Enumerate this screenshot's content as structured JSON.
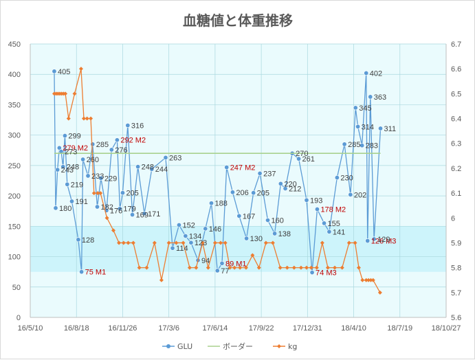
{
  "chart_data": {
    "type": "line",
    "title": "血糖値と体重推移",
    "colors": {
      "glu": "#5b9bd5",
      "border": "#a9d18e",
      "kg": "#ed7d31",
      "band": "#cdf4fb",
      "plot_bg": "#eafbfd",
      "grid": "#a9d8de",
      "note_text": "#c00000"
    },
    "x_axis": {
      "type": "date",
      "range": [
        "2016-05-10",
        "2018-10-27"
      ],
      "tick_dates": [
        "2016-05-10",
        "2016-08-18",
        "2016-11-26",
        "2017-03-06",
        "2017-06-14",
        "2017-09-22",
        "2017-12-31",
        "2018-04-10",
        "2018-07-19",
        "2018-10-27"
      ],
      "tick_labels": [
        "16/5/10",
        "16/8/18",
        "16/11/26",
        "17/3/6",
        "17/6/14",
        "17/9/22",
        "17/12/31",
        "18/4/10",
        "18/7/19",
        "18/10/27"
      ]
    },
    "y_left": {
      "range": [
        0,
        450
      ],
      "step": 50,
      "tick_labels": [
        "0",
        "50",
        "100",
        "150",
        "200",
        "250",
        "300",
        "350",
        "400",
        "450"
      ]
    },
    "y_right": {
      "range": [
        5.6,
        6.7
      ],
      "step": 0.1,
      "tick_labels": [
        "5.6",
        "5.7",
        "5.8",
        "5.9",
        "6",
        "6.1",
        "6.2",
        "6.3",
        "6.4",
        "6.5",
        "6.6",
        "6.7"
      ]
    },
    "target_band": {
      "axis": "left",
      "from": 75,
      "to": 150
    },
    "series": [
      {
        "name": "GLU",
        "axis": "left",
        "marker": "circle",
        "points": [
          {
            "x": "2016-07-01",
            "y": 405,
            "label": "405"
          },
          {
            "x": "2016-07-04",
            "y": 180,
            "label": "180"
          },
          {
            "x": "2016-07-08",
            "y": 243,
            "label": "243"
          },
          {
            "x": "2016-07-12",
            "y": 279,
            "label": "279 M2",
            "note": true
          },
          {
            "x": "2016-07-16",
            "y": 273,
            "label": "273"
          },
          {
            "x": "2016-07-20",
            "y": 248,
            "label": "248"
          },
          {
            "x": "2016-07-24",
            "y": 299,
            "label": "299"
          },
          {
            "x": "2016-07-29",
            "y": 219,
            "label": "219"
          },
          {
            "x": "2016-08-08",
            "y": 191,
            "label": "191"
          },
          {
            "x": "2016-08-22",
            "y": 128,
            "label": "128"
          },
          {
            "x": "2016-08-29",
            "y": 75,
            "label": "75 M1",
            "note": true
          },
          {
            "x": "2016-09-01",
            "y": 260,
            "label": "260"
          },
          {
            "x": "2016-09-12",
            "y": 233,
            "label": "233"
          },
          {
            "x": "2016-09-22",
            "y": 285,
            "label": "285"
          },
          {
            "x": "2016-10-02",
            "y": 182,
            "label": "182"
          },
          {
            "x": "2016-10-10",
            "y": 229,
            "label": "229"
          },
          {
            "x": "2016-10-22",
            "y": 176,
            "label": "176"
          },
          {
            "x": "2016-11-02",
            "y": 276,
            "label": "276"
          },
          {
            "x": "2016-11-14",
            "y": 292,
            "label": "292 M2",
            "note": true
          },
          {
            "x": "2016-11-20",
            "y": 179,
            "label": "179"
          },
          {
            "x": "2016-11-26",
            "y": 205,
            "label": "205"
          },
          {
            "x": "2016-12-07",
            "y": 316,
            "label": "316"
          },
          {
            "x": "2016-12-17",
            "y": 169,
            "label": "169"
          },
          {
            "x": "2016-12-29",
            "y": 248,
            "label": "248"
          },
          {
            "x": "2017-01-12",
            "y": 171,
            "label": "171"
          },
          {
            "x": "2017-01-28",
            "y": 244,
            "label": "244"
          },
          {
            "x": "2017-02-27",
            "y": 263,
            "label": "263"
          },
          {
            "x": "2017-03-14",
            "y": 114,
            "label": "114"
          },
          {
            "x": "2017-03-28",
            "y": 152,
            "label": "152"
          },
          {
            "x": "2017-04-11",
            "y": 134,
            "label": "134"
          },
          {
            "x": "2017-04-23",
            "y": 123,
            "label": "123"
          },
          {
            "x": "2017-05-08",
            "y": 94,
            "label": "94"
          },
          {
            "x": "2017-05-24",
            "y": 146,
            "label": "146"
          },
          {
            "x": "2017-06-06",
            "y": 188,
            "label": "188"
          },
          {
            "x": "2017-06-19",
            "y": 77,
            "label": "77"
          },
          {
            "x": "2017-06-29",
            "y": 89,
            "label": "89 M1",
            "note": true
          },
          {
            "x": "2017-07-09",
            "y": 247,
            "label": "247 M2",
            "note": true
          },
          {
            "x": "2017-07-22",
            "y": 206,
            "label": "206"
          },
          {
            "x": "2017-08-05",
            "y": 167,
            "label": "167"
          },
          {
            "x": "2017-08-21",
            "y": 130,
            "label": "130"
          },
          {
            "x": "2017-09-05",
            "y": 205,
            "label": "205"
          },
          {
            "x": "2017-09-19",
            "y": 237,
            "label": "237"
          },
          {
            "x": "2017-10-06",
            "y": 160,
            "label": "160"
          },
          {
            "x": "2017-10-21",
            "y": 138,
            "label": "138"
          },
          {
            "x": "2017-11-03",
            "y": 220,
            "label": "220"
          },
          {
            "x": "2017-11-13",
            "y": 212,
            "label": "212"
          },
          {
            "x": "2017-11-28",
            "y": 270,
            "label": "270"
          },
          {
            "x": "2017-12-12",
            "y": 261,
            "label": "261"
          },
          {
            "x": "2017-12-29",
            "y": 193,
            "label": "193"
          },
          {
            "x": "2018-01-10",
            "y": 74,
            "label": "74 M3",
            "note": true
          },
          {
            "x": "2018-01-21",
            "y": 178,
            "label": "178 M2",
            "note": true
          },
          {
            "x": "2018-02-05",
            "y": 155,
            "label": "155"
          },
          {
            "x": "2018-02-16",
            "y": 141,
            "label": "141"
          },
          {
            "x": "2018-03-05",
            "y": 230,
            "label": "230"
          },
          {
            "x": "2018-03-21",
            "y": 285,
            "label": "285"
          },
          {
            "x": "2018-04-03",
            "y": 202,
            "label": "202"
          },
          {
            "x": "2018-04-14",
            "y": 345,
            "label": "345"
          },
          {
            "x": "2018-04-19",
            "y": 314,
            "label": "314"
          },
          {
            "x": "2018-04-28",
            "y": 283,
            "label": "283"
          },
          {
            "x": "2018-05-07",
            "y": 402,
            "label": "402"
          },
          {
            "x": "2018-05-10",
            "y": 126,
            "label": "126 M3",
            "note": true
          },
          {
            "x": "2018-05-16",
            "y": 363,
            "label": "363"
          },
          {
            "x": "2018-05-24",
            "y": 129,
            "label": "129"
          },
          {
            "x": "2018-06-07",
            "y": 311,
            "label": "311"
          }
        ]
      },
      {
        "name": "ボーダー",
        "axis": "left",
        "marker": "none",
        "points": [
          {
            "x": "2016-07-01",
            "y": 270
          },
          {
            "x": "2018-06-07",
            "y": 270
          }
        ]
      },
      {
        "name": "kg",
        "axis": "right",
        "marker": "diamond",
        "points": [
          {
            "x": "2016-07-01",
            "y": 6.5
          },
          {
            "x": "2016-07-05",
            "y": 6.5
          },
          {
            "x": "2016-07-09",
            "y": 6.5
          },
          {
            "x": "2016-07-13",
            "y": 6.5
          },
          {
            "x": "2016-07-17",
            "y": 6.5
          },
          {
            "x": "2016-07-21",
            "y": 6.5
          },
          {
            "x": "2016-07-25",
            "y": 6.5
          },
          {
            "x": "2016-08-01",
            "y": 6.4
          },
          {
            "x": "2016-08-14",
            "y": 6.5
          },
          {
            "x": "2016-08-28",
            "y": 6.6
          },
          {
            "x": "2016-09-03",
            "y": 6.4
          },
          {
            "x": "2016-09-10",
            "y": 6.4
          },
          {
            "x": "2016-09-18",
            "y": 6.4
          },
          {
            "x": "2016-09-25",
            "y": 6.1
          },
          {
            "x": "2016-10-03",
            "y": 6.1
          },
          {
            "x": "2016-10-09",
            "y": 6.1
          },
          {
            "x": "2016-10-23",
            "y": 6.0
          },
          {
            "x": "2016-11-06",
            "y": 5.95
          },
          {
            "x": "2016-11-18",
            "y": 5.9
          },
          {
            "x": "2016-11-28",
            "y": 5.9
          },
          {
            "x": "2016-12-08",
            "y": 5.9
          },
          {
            "x": "2016-12-19",
            "y": 5.9
          },
          {
            "x": "2017-01-01",
            "y": 5.8
          },
          {
            "x": "2017-01-17",
            "y": 5.8
          },
          {
            "x": "2017-02-03",
            "y": 5.9
          },
          {
            "x": "2017-02-18",
            "y": 5.75
          },
          {
            "x": "2017-03-06",
            "y": 5.9
          },
          {
            "x": "2017-03-22",
            "y": 5.9
          },
          {
            "x": "2017-04-06",
            "y": 5.9
          },
          {
            "x": "2017-04-20",
            "y": 5.8
          },
          {
            "x": "2017-05-04",
            "y": 5.8
          },
          {
            "x": "2017-05-18",
            "y": 5.9
          },
          {
            "x": "2017-05-30",
            "y": 5.8
          },
          {
            "x": "2017-06-14",
            "y": 5.9
          },
          {
            "x": "2017-06-26",
            "y": 5.9
          },
          {
            "x": "2017-07-06",
            "y": 5.9
          },
          {
            "x": "2017-07-16",
            "y": 5.8
          },
          {
            "x": "2017-07-26",
            "y": 5.8
          },
          {
            "x": "2017-08-07",
            "y": 5.8
          },
          {
            "x": "2017-08-20",
            "y": 5.8
          },
          {
            "x": "2017-09-03",
            "y": 5.85
          },
          {
            "x": "2017-09-17",
            "y": 5.8
          },
          {
            "x": "2017-10-02",
            "y": 5.9
          },
          {
            "x": "2017-10-17",
            "y": 5.9
          },
          {
            "x": "2017-11-02",
            "y": 5.8
          },
          {
            "x": "2017-11-17",
            "y": 5.8
          },
          {
            "x": "2017-12-02",
            "y": 5.8
          },
          {
            "x": "2017-12-17",
            "y": 5.8
          },
          {
            "x": "2017-12-29",
            "y": 5.8
          },
          {
            "x": "2018-01-08",
            "y": 5.8
          },
          {
            "x": "2018-01-20",
            "y": 5.8
          },
          {
            "x": "2018-02-01",
            "y": 5.9
          },
          {
            "x": "2018-02-13",
            "y": 5.8
          },
          {
            "x": "2018-02-28",
            "y": 5.8
          },
          {
            "x": "2018-03-16",
            "y": 5.8
          },
          {
            "x": "2018-03-31",
            "y": 5.9
          },
          {
            "x": "2018-04-13",
            "y": 5.9
          },
          {
            "x": "2018-04-21",
            "y": 5.8
          },
          {
            "x": "2018-04-29",
            "y": 5.75
          },
          {
            "x": "2018-05-07",
            "y": 5.75
          },
          {
            "x": "2018-05-12",
            "y": 5.75
          },
          {
            "x": "2018-05-17",
            "y": 5.75
          },
          {
            "x": "2018-05-22",
            "y": 5.75
          },
          {
            "x": "2018-06-06",
            "y": 5.7
          }
        ]
      }
    ],
    "legend": {
      "position": "bottom",
      "entries": [
        "GLU",
        "ボーダー",
        "kg"
      ]
    },
    "grid": true
  }
}
